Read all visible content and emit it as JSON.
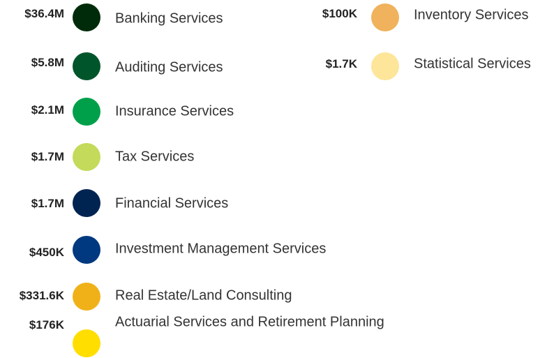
{
  "items": [
    {
      "value": "$36.4M",
      "label": "Banking Services",
      "color": "#002b0a"
    },
    {
      "value": "$5.8M",
      "label": "Auditing Services",
      "color": "#00552b"
    },
    {
      "value": "$2.1M",
      "label": "Insurance Services",
      "color": "#00a04a"
    },
    {
      "value": "$1.7M",
      "label": "Tax Services",
      "color": "#c3da5a"
    },
    {
      "value": "$1.7M",
      "label": "Financial Services",
      "color": "#002452"
    },
    {
      "value": "$450K",
      "label": "Investment Management Services",
      "color": "#00397f"
    },
    {
      "value": "$331.6K",
      "label": "Real Estate/Land Consulting",
      "color": "#f0b118"
    },
    {
      "value": "$176K",
      "label": "Actuarial Services and Retirement Planning",
      "color": "#ffde00"
    },
    {
      "value": "$100K",
      "label": "Inventory Services",
      "color": "#f0b25c"
    },
    {
      "value": "$1.7K",
      "label": "Statistical Services",
      "color": "#fde59a"
    }
  ]
}
